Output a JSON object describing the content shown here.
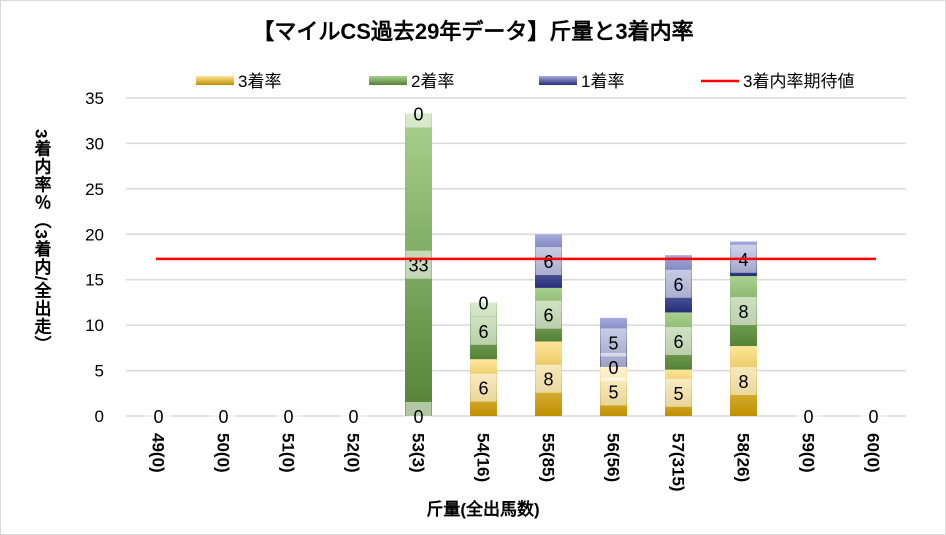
{
  "chart_data": {
    "type": "bar",
    "stacked": true,
    "title": "【マイルCS過去29年データ】斤量と3着内率",
    "xlabel": "斤量(全出馬数)",
    "ylabel": "3着内率％（3着内/全出走）",
    "ylim": [
      0,
      35
    ],
    "yticks": [
      0,
      5,
      10,
      15,
      20,
      25,
      30,
      35
    ],
    "grid": true,
    "legend_position": "top",
    "categories": [
      "49(0)",
      "50(0)",
      "51(0)",
      "52(0)",
      "53(3)",
      "54(16)",
      "55(85)",
      "56(56)",
      "57(315)",
      "58(26)",
      "59(0)",
      "60(0)"
    ],
    "series": [
      {
        "name": "3着率",
        "colors": [
          "#ffe699",
          "#bf9000"
        ],
        "values": [
          0,
          0,
          0,
          0,
          0,
          6.25,
          8.2,
          5.4,
          5.1,
          7.7,
          0,
          0
        ],
        "labels": [
          "0",
          "0",
          "0",
          "0",
          "0",
          "6",
          "8",
          "5",
          "5",
          "8",
          "0",
          "0"
        ]
      },
      {
        "name": "2着率",
        "colors": [
          "#a9d18e",
          "#548235"
        ],
        "values": [
          0,
          0,
          0,
          0,
          33.3,
          6.25,
          5.9,
          0,
          6.3,
          7.7,
          0,
          0
        ],
        "labels": [
          "",
          "",
          "",
          "",
          "33",
          "6",
          "6",
          "0",
          "6",
          "8",
          "",
          ""
        ]
      },
      {
        "name": "1着率",
        "colors": [
          "#a4aadc",
          "#262f7a"
        ],
        "values": [
          0,
          0,
          0,
          0,
          0,
          0,
          5.9,
          5.4,
          6.3,
          3.8,
          0,
          0
        ],
        "labels": [
          "",
          "",
          "",
          "",
          "0",
          "0",
          "6",
          "5",
          "6",
          "4",
          "",
          ""
        ]
      }
    ],
    "reference_line": {
      "name": "3着内率期待値",
      "value": 17.3,
      "color": "#ff0000"
    }
  }
}
